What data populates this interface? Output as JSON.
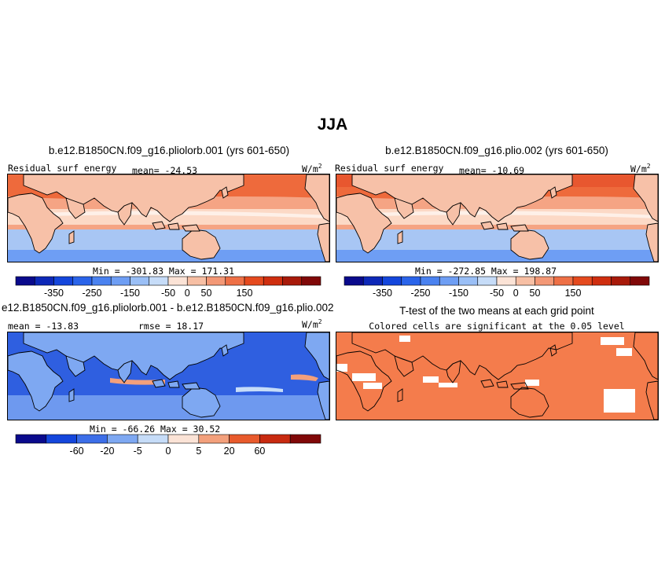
{
  "figure": {
    "title": "JJA"
  },
  "panels": {
    "p1": {
      "title": "b.e12.B1850CN.f09_g16.pliolorb.001 (yrs 601-650)",
      "left_label": "Residual surf energy",
      "mean_text": "mean= -24.53",
      "units": "W/m",
      "units_exp": "2",
      "minmax": "Min = -301.83 Max = 171.31"
    },
    "p2": {
      "title": "b.e12.B1850CN.f09_g16.plio.002 (yrs 601-650)",
      "left_label": "Residual surf energy",
      "mean_text": "mean= -10.69",
      "units": "W/m",
      "units_exp": "2",
      "minmax": "Min = -272.85 Max = 198.87"
    },
    "p3": {
      "title": "e12.B1850CN.f09_g16.pliolorb.001 - b.e12.B1850CN.f09_g16.plio.002",
      "mean_text": "mean = -13.83",
      "rmse_text": "rmse = 18.17",
      "units": "W/m",
      "units_exp": "2",
      "minmax": "Min = -66.26 Max = 30.52"
    },
    "p4": {
      "title": "T-test of the two means at each grid point",
      "subtitle": "Colored cells are significant at the 0.05 level"
    }
  },
  "legends": {
    "abs": {
      "colors": [
        "#0a0a8c",
        "#0d28b8",
        "#1446dc",
        "#2a64ea",
        "#4a82f0",
        "#6e9ef4",
        "#9abff6",
        "#c6dcf8",
        "#fbe3d6",
        "#f7bfa4",
        "#f39876",
        "#ee7046",
        "#e54a1e",
        "#cf2e0f",
        "#a81a0a",
        "#800808"
      ],
      "tick_labels": [
        "-350",
        "-250",
        "-150",
        "-50",
        "0",
        "50",
        "150"
      ],
      "tick_positions": [
        2,
        4,
        6,
        8,
        9,
        10,
        12
      ]
    },
    "diff": {
      "colors": [
        "#0a0a8c",
        "#1446dc",
        "#3c6ee8",
        "#7ea8f2",
        "#c6dcf8",
        "#fbe3d6",
        "#f3a07c",
        "#e85a2c",
        "#c82a10",
        "#800808"
      ],
      "tick_labels": [
        "-60",
        "-20",
        "-5",
        "0",
        "5",
        "20",
        "60"
      ],
      "tick_positions": [
        2,
        3,
        4,
        5,
        6,
        7,
        8
      ]
    }
  },
  "map_colors": {
    "land_outline": "#000000",
    "significant": "#f47c4c",
    "abs_north": "#ee6a3c",
    "abs_mid": "#f5a484",
    "abs_eq": "#fcd9c6",
    "abs_south": "#a8c6f4",
    "abs_far_south": "#6e9ef4",
    "diff_ocean": "#2f5fe0",
    "diff_light": "#7ea8f2",
    "diff_pale": "#c6dcf8",
    "diff_warm": "#f3a07c"
  }
}
